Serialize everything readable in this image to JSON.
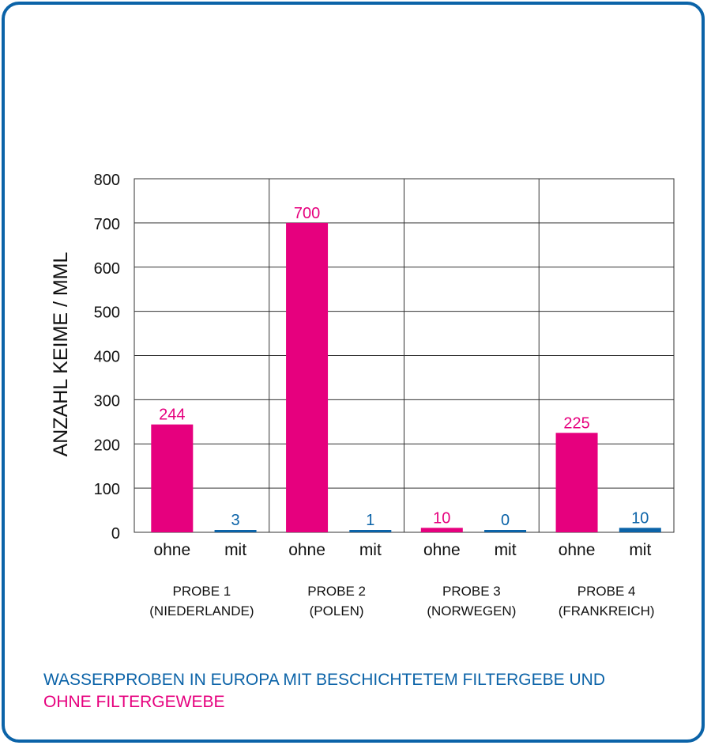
{
  "colors": {
    "pink": "#e6007e",
    "blue": "#0b63a8",
    "grid": "#333333"
  },
  "chart_data": {
    "type": "bar",
    "ylabel": "ANZAHL KEIME / MML",
    "ylim": [
      0,
      800
    ],
    "yticks": [
      0,
      100,
      200,
      300,
      400,
      500,
      600,
      700,
      800
    ],
    "groups": [
      {
        "line1": "PROBE 1",
        "line2": "(NIEDERLANDE)"
      },
      {
        "line1": "PROBE 2",
        "line2": "(POLEN)"
      },
      {
        "line1": "PROBE 3",
        "line2": "(NORWEGEN)"
      },
      {
        "line1": "PROBE 4",
        "line2": "(FRANKREICH)"
      }
    ],
    "series": [
      {
        "name": "ohne",
        "color": "#e6007e",
        "values": [
          244,
          700,
          10,
          225
        ]
      },
      {
        "name": "mit",
        "color": "#0b63a8",
        "values": [
          3,
          1,
          0,
          10
        ]
      }
    ]
  },
  "caption": {
    "line1": "WASSERPROBEN IN EUROPA MIT BESCHICHTETEM FILTERGEBE UND",
    "line2": "OHNE FILTERGEWEBE"
  }
}
